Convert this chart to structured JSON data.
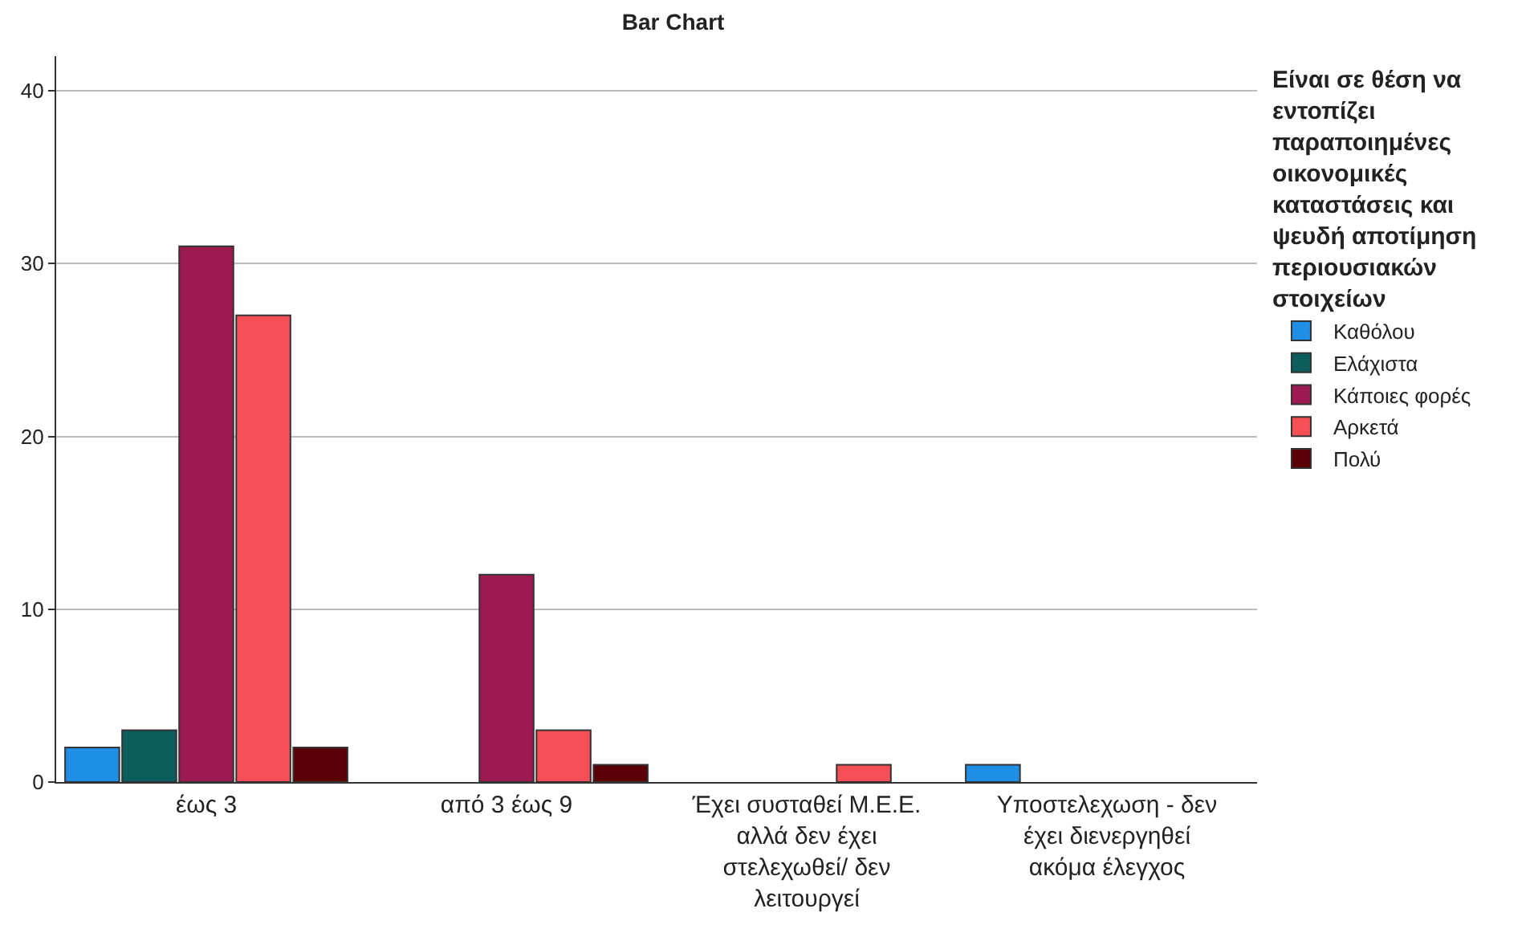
{
  "chart_data": {
    "type": "bar",
    "title": "Bar Chart",
    "legend_title": "Είναι σε θέση να εντοπίζει παραποιημένες οικονομικές καταστάσεις και ψευδή αποτίμηση περιουσιακών στοιχείων",
    "categories": [
      "έως 3",
      "από 3 έως 9",
      "Έχει συσταθεί Μ.Ε.Ε. αλλά δεν έχει στελεχωθεί/ δεν λειτουργεί",
      "Υποστελεχωση - δεν έχει διενεργηθεί ακόμα έλεγχος"
    ],
    "series": [
      {
        "name": "Καθόλου",
        "color": "#1f8fe5",
        "values": [
          2,
          null,
          null,
          1
        ]
      },
      {
        "name": "Ελάχιστα",
        "color": "#0c5d5d",
        "values": [
          3,
          null,
          null,
          null
        ]
      },
      {
        "name": "Κάποιες φορές",
        "color": "#9c1a50",
        "values": [
          31,
          12,
          null,
          null
        ]
      },
      {
        "name": "Αρκετά",
        "color": "#f64f55",
        "values": [
          27,
          3,
          1,
          null
        ]
      },
      {
        "name": "Πολύ",
        "color": "#5a0006",
        "values": [
          2,
          1,
          null,
          null
        ]
      }
    ],
    "ylim": [
      0,
      42
    ],
    "yticks": [
      0,
      10,
      20,
      30,
      40
    ],
    "grid": "y",
    "legend": "top right"
  }
}
